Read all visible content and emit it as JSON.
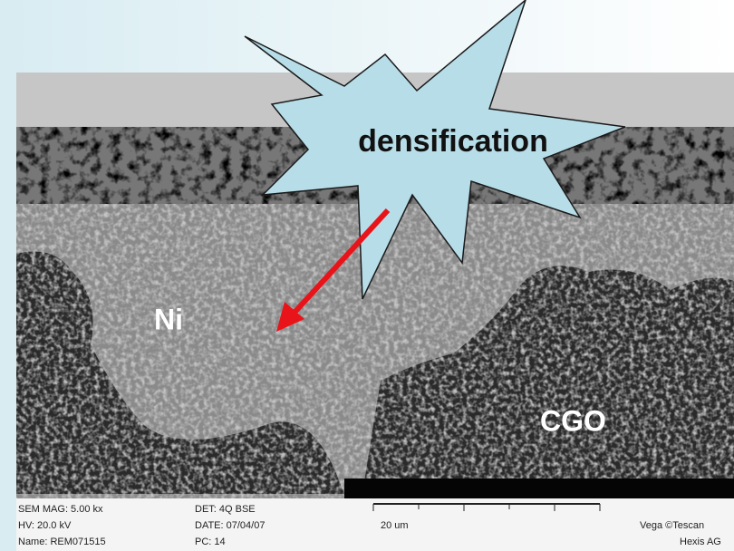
{
  "annotations": {
    "callout": "densification",
    "ni": "Ni",
    "cgo": "CGO"
  },
  "info_bar": {
    "col1": [
      "SEM MAG: 5.00 kx",
      "HV:  20.0 kV",
      "Name: REM071515"
    ],
    "col2": [
      "DET: 4Q BSE",
      "DATE: 07/04/07",
      "PC:  14"
    ],
    "scale": "20 um",
    "maker": "Vega ©Tescan",
    "lab": "Hexis AG"
  }
}
